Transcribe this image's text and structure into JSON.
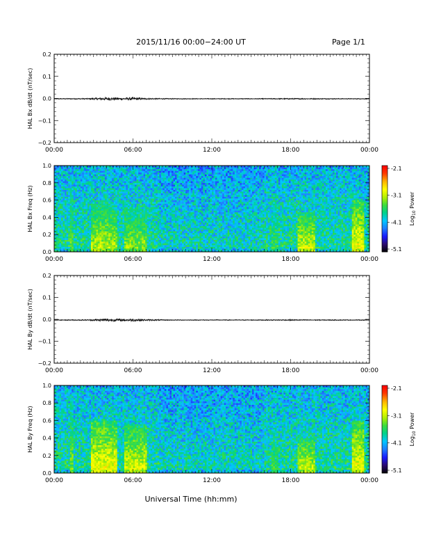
{
  "header": {
    "title": "2015/11/16  00:00−24:00 UT",
    "page": "Page 1/1"
  },
  "colors": {
    "axis": "#000000",
    "trace": "#000000",
    "colormap": [
      "#000000",
      "#2a0a6e",
      "#1a1aff",
      "#1e7dff",
      "#00c8ff",
      "#00d28c",
      "#3cdc3c",
      "#b4f000",
      "#ffff00",
      "#ffb400",
      "#ff3c00",
      "#ff0000"
    ]
  },
  "xaxis": {
    "ticks": [
      "00:00",
      "06:00",
      "12:00",
      "18:00",
      "00:00"
    ],
    "label": "Universal Time (hh:mm)"
  },
  "colorbar": {
    "ticks": [
      "-2.1",
      "-3.1",
      "-4.1",
      "-5.1"
    ],
    "label_prefix": "Log",
    "label_sub": "10",
    "label_suffix": " Power"
  },
  "chart_data": [
    {
      "type": "line",
      "ylabel": "HAL Bx dB/dt (nT/sec)",
      "yticks": [
        "0.2",
        "0.1",
        "0.0",
        "−0.1",
        "−0.2"
      ],
      "ylim": [
        -0.2,
        0.2
      ],
      "xlim_hours": [
        0,
        24
      ],
      "series_note": "near-zero dB/dt trace with slightly larger fluctuations around 04:00–06:00 UT",
      "activity": [
        [
          0,
          0.002
        ],
        [
          2.5,
          0.003
        ],
        [
          3.5,
          0.006
        ],
        [
          4.2,
          0.008
        ],
        [
          5.0,
          0.006
        ],
        [
          6.0,
          0.007
        ],
        [
          7.0,
          0.004
        ],
        [
          9.0,
          0.002
        ],
        [
          15.0,
          0.002
        ],
        [
          18.0,
          0.003
        ],
        [
          22.0,
          0.002
        ],
        [
          24.0,
          0.002
        ]
      ]
    },
    {
      "type": "heatmap",
      "ylabel": "HAL Bx Freq (Hz)",
      "yticks": [
        "1.0",
        "0.8",
        "0.6",
        "0.4",
        "0.2",
        "0.0"
      ],
      "ylim": [
        0,
        1.0
      ],
      "xlim_hours": [
        0,
        24
      ],
      "zlim": [
        -5.1,
        -2.1
      ],
      "features": [
        {
          "t0": 1.2,
          "t1": 1.5,
          "fmax": 0.9,
          "level": -3.4
        },
        {
          "t0": 2.8,
          "t1": 4.8,
          "fmax": 0.55,
          "level": -3.1
        },
        {
          "t0": 5.3,
          "t1": 7.0,
          "fmax": 0.5,
          "level": -3.2
        },
        {
          "t0": 16.6,
          "t1": 17.0,
          "fmax": 0.55,
          "level": -3.5
        },
        {
          "t0": 18.5,
          "t1": 19.8,
          "fmax": 0.45,
          "level": -3.0
        },
        {
          "t0": 22.7,
          "t1": 23.6,
          "fmax": 0.6,
          "level": -2.9
        }
      ]
    },
    {
      "type": "line",
      "ylabel": "HAL By dB/dt (nT/sec)",
      "yticks": [
        "0.2",
        "0.1",
        "0.0",
        "−0.1",
        "−0.2"
      ],
      "ylim": [
        -0.2,
        0.2
      ],
      "xlim_hours": [
        0,
        24
      ],
      "series_note": "near-zero dB/dt trace with slightly larger fluctuations around 04:00–06:00 UT",
      "activity": [
        [
          0,
          0.002
        ],
        [
          2.5,
          0.003
        ],
        [
          3.5,
          0.006
        ],
        [
          4.2,
          0.008
        ],
        [
          5.0,
          0.006
        ],
        [
          6.0,
          0.007
        ],
        [
          7.0,
          0.004
        ],
        [
          9.0,
          0.002
        ],
        [
          15.0,
          0.002
        ],
        [
          18.0,
          0.003
        ],
        [
          22.0,
          0.002
        ],
        [
          24.0,
          0.002
        ]
      ]
    },
    {
      "type": "heatmap",
      "ylabel": "HAL By Freq (Hz)",
      "yticks": [
        "1.0",
        "0.8",
        "0.6",
        "0.4",
        "0.2",
        "0.0"
      ],
      "ylim": [
        0,
        1.0
      ],
      "xlim_hours": [
        0,
        24
      ],
      "zlim": [
        -5.1,
        -2.1
      ],
      "features": [
        {
          "t0": 1.2,
          "t1": 1.5,
          "fmax": 0.9,
          "level": -3.3
        },
        {
          "t0": 2.8,
          "t1": 4.8,
          "fmax": 0.6,
          "level": -2.9
        },
        {
          "t0": 5.3,
          "t1": 7.0,
          "fmax": 0.55,
          "level": -3.0
        },
        {
          "t0": 16.6,
          "t1": 17.0,
          "fmax": 0.55,
          "level": -3.5
        },
        {
          "t0": 18.5,
          "t1": 19.8,
          "fmax": 0.4,
          "level": -3.0
        },
        {
          "t0": 22.7,
          "t1": 23.6,
          "fmax": 0.6,
          "level": -2.9
        }
      ]
    }
  ]
}
